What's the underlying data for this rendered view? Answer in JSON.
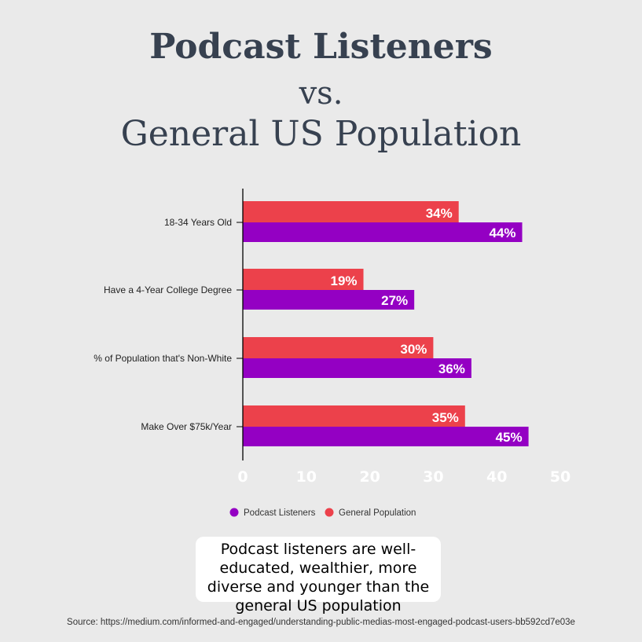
{
  "title": {
    "line1": "Podcast Listeners",
    "line2": "vs.",
    "line3": "General US Population"
  },
  "chart_data": {
    "type": "bar",
    "orientation": "horizontal",
    "categories": [
      "18-34 Years Old",
      "Have a 4-Year College Degree",
      "% of Population that's Non-White",
      "Make Over $75k/Year"
    ],
    "series": [
      {
        "name": "General Population",
        "values": [
          34,
          19,
          30,
          35
        ],
        "labels": [
          "34%",
          "19%",
          "30%",
          "35%"
        ],
        "color": "#ec414b"
      },
      {
        "name": "Podcast Listeners",
        "values": [
          44,
          27,
          36,
          45
        ],
        "labels": [
          "44%",
          "27%",
          "36%",
          "45%"
        ],
        "color": "#9400c3"
      }
    ],
    "xlim": [
      0,
      50
    ],
    "xticks": [
      "0",
      "10",
      "20",
      "30",
      "40",
      "50"
    ],
    "grid": false,
    "legend": {
      "placement": "bottom",
      "entries": [
        {
          "name": "Podcast Listeners",
          "color": "#9400c3"
        },
        {
          "name": "General Population",
          "color": "#ec414b"
        }
      ]
    }
  },
  "note": "Podcast listeners are well-educated, wealthier, more diverse and younger than the general US population",
  "source": "Source: https://medium.com/informed-and-engaged/understanding-public-medias-most-engaged-podcast-users-bb592cd7e03e"
}
